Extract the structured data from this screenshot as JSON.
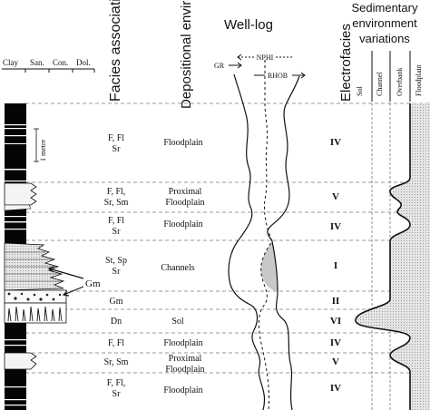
{
  "headers": {
    "lithology": [
      "Clay",
      "San.",
      "Con.",
      "Dol."
    ],
    "facies_association": "Facies association",
    "depositional_environment": "Depositional environment",
    "well_log": "Well-log",
    "electrofacies": "Electrofacies",
    "sedimentary_variations": [
      "Sedimentary",
      "environment",
      "variations"
    ],
    "env_columns": [
      "Sol",
      "Channel",
      "Overbank",
      "Floodplain"
    ]
  },
  "log_legend": {
    "gr": "GR",
    "nphi": "NPHI",
    "rhob": "RHOB"
  },
  "scale_label": "1 metre",
  "gm_label": "Gm",
  "units": [
    {
      "facies": [
        "F, Fl",
        "Sr"
      ],
      "environment": [
        "Floodplain"
      ],
      "electrofacies": "IV"
    },
    {
      "facies": [
        "F, Fl,",
        "Sr, Sm"
      ],
      "environment": [
        "Proximal",
        "Floodplain"
      ],
      "electrofacies": "V"
    },
    {
      "facies": [
        "F, Fl",
        "Sr"
      ],
      "environment": [
        "Floodplain"
      ],
      "electrofacies": "IV"
    },
    {
      "facies": [
        "St, Sp",
        "Sr"
      ],
      "environment": [
        "Channels"
      ],
      "electrofacies": "I"
    },
    {
      "facies": [
        "Gm"
      ],
      "environment": [],
      "electrofacies": "II"
    },
    {
      "facies": [
        "Dn"
      ],
      "environment": [
        "Sol"
      ],
      "electrofacies": "VI"
    },
    {
      "facies": [
        "F, Fl"
      ],
      "environment": [
        "Floodplain"
      ],
      "electrofacies": "IV"
    },
    {
      "facies": [
        "Sr, Sm"
      ],
      "environment": [
        "Proximal",
        "Floodplain"
      ],
      "electrofacies": "V"
    },
    {
      "facies": [
        "F, Fl,",
        "Sr"
      ],
      "environment": [
        "Floodplain"
      ],
      "electrofacies": "IV"
    }
  ]
}
